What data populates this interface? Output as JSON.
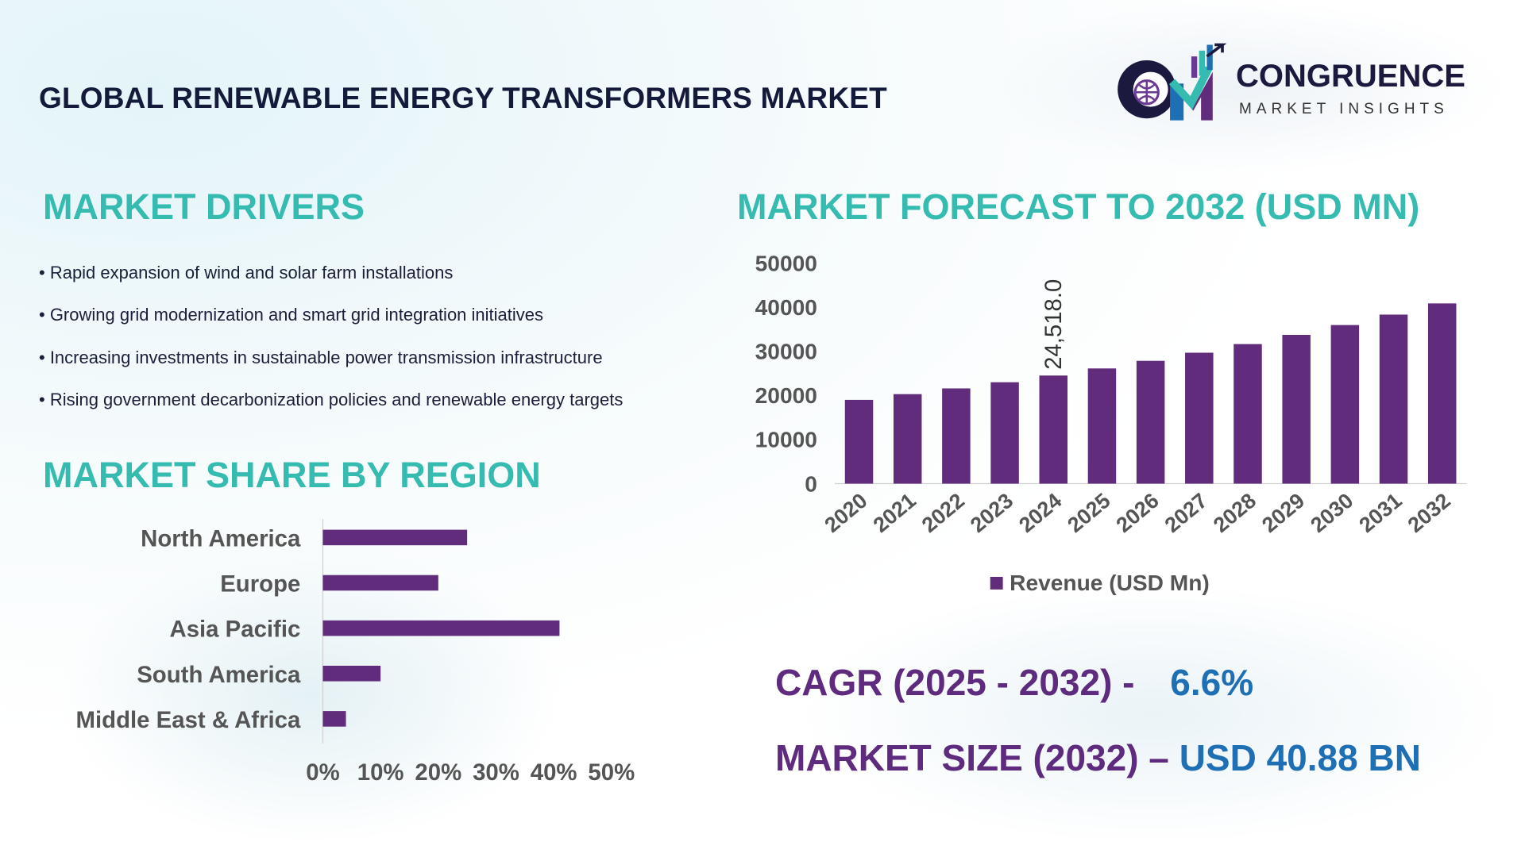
{
  "title": "GLOBAL RENEWABLE ENERGY TRANSFORMERS MARKET",
  "logo": {
    "name": "CONGRUENCE",
    "tagline": "MARKET INSIGHTS"
  },
  "drivers": {
    "heading": "MARKET DRIVERS",
    "items": [
      "• Rapid expansion of wind and solar farm installations",
      "• Growing grid modernization and smart grid integration initiatives",
      "• Increasing investments in sustainable power transmission infrastructure",
      "• Rising government decarbonization policies and renewable energy targets"
    ]
  },
  "region_heading": "MARKET SHARE BY REGION",
  "forecast_heading": "MARKET FORECAST TO 2032 (USD MN)",
  "kpis": {
    "cagr_label": "CAGR (2025 - 2032) -",
    "cagr_value": "6.6%",
    "size_label": "MARKET SIZE (2032) –",
    "size_value": "USD 40.88 BN"
  },
  "colors": {
    "bar": "#612c7c",
    "heading": "#35bbb0",
    "kpi_label": "#5e2b7e",
    "kpi_value": "#1f6fb5"
  },
  "chart_data": [
    {
      "type": "bar",
      "orientation": "vertical",
      "categories": [
        "2020",
        "2021",
        "2022",
        "2023",
        "2024",
        "2025",
        "2026",
        "2027",
        "2028",
        "2029",
        "2030",
        "2031",
        "2032"
      ],
      "series": [
        {
          "name": "Revenue (USD Mn)",
          "values": [
            19000,
            20300,
            21600,
            23000,
            24518,
            26130,
            27855,
            29694,
            31654,
            33743,
            35970,
            38344,
            40880
          ]
        }
      ],
      "data_labels": [
        {
          "category": "2024",
          "text": "24,518.0"
        }
      ],
      "yticks": [
        "0",
        "10000",
        "20000",
        "30000",
        "40000",
        "50000"
      ],
      "ylim": [
        0,
        50000
      ],
      "legend": "bottom",
      "grid": false
    },
    {
      "type": "bar",
      "orientation": "horizontal",
      "categories": [
        "North America",
        "Europe",
        "Asia Pacific",
        "South America",
        "Middle East & Africa"
      ],
      "values": [
        25,
        20,
        41,
        10,
        4
      ],
      "xticks": [
        "0%",
        "10%",
        "20%",
        "30%",
        "40%",
        "50%"
      ],
      "xlim": [
        0,
        50
      ],
      "grid": false
    }
  ]
}
